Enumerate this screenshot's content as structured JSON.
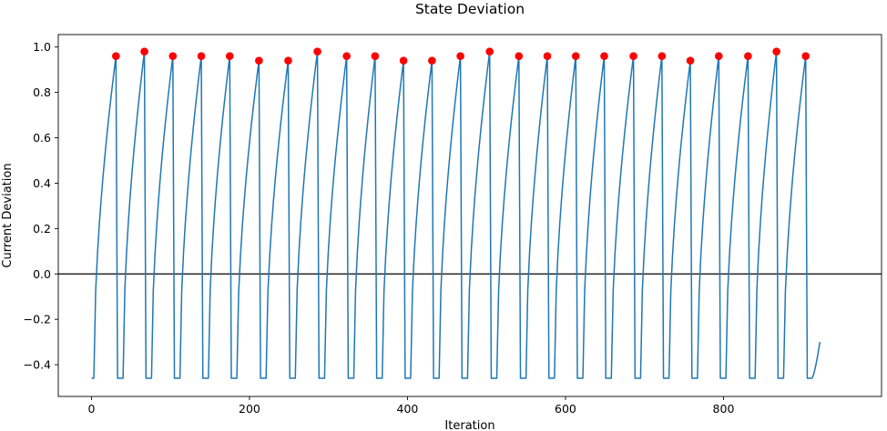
{
  "chart_data": {
    "type": "line",
    "title": "State Deviation",
    "xlabel": "Iteration",
    "ylabel": "Current Deviation",
    "xlim": [
      -42,
      1000
    ],
    "ylim": [
      -0.54,
      1.055
    ],
    "xticks": [
      0,
      200,
      400,
      600,
      800
    ],
    "yticks": [
      -0.4,
      -0.2,
      0.0,
      0.2,
      0.4,
      0.6,
      0.8,
      1.0
    ],
    "xtick_labels": [
      "0",
      "200",
      "400",
      "600",
      "800"
    ],
    "ytick_labels": [
      "−0.4",
      "−0.2",
      "0.0",
      "0.2",
      "0.4",
      "0.6",
      "0.8",
      "1.0"
    ],
    "reference_line_y": 0.0,
    "grid": false,
    "colors": {
      "line": "#1f77b4",
      "peaks": "#ff0000",
      "reference": "#000000"
    },
    "series": [
      {
        "type": "line",
        "baseline": -0.46,
        "start_x": 0,
        "end": {
          "x": 922,
          "y": -0.3
        },
        "cycles": [
          {
            "rise_start": 3,
            "peak_x": 31,
            "peak_y": 0.96,
            "drop_x": 33
          },
          {
            "rise_start": 40,
            "peak_x": 67,
            "peak_y": 0.98,
            "drop_x": 69
          },
          {
            "rise_start": 76,
            "peak_x": 103,
            "peak_y": 0.96,
            "drop_x": 105
          },
          {
            "rise_start": 112,
            "peak_x": 139,
            "peak_y": 0.96,
            "drop_x": 141
          },
          {
            "rise_start": 148,
            "peak_x": 175,
            "peak_y": 0.96,
            "drop_x": 177
          },
          {
            "rise_start": 184,
            "peak_x": 212,
            "peak_y": 0.94,
            "drop_x": 214
          },
          {
            "rise_start": 221,
            "peak_x": 249,
            "peak_y": 0.94,
            "drop_x": 251
          },
          {
            "rise_start": 258,
            "peak_x": 286,
            "peak_y": 0.98,
            "drop_x": 288
          },
          {
            "rise_start": 295,
            "peak_x": 323,
            "peak_y": 0.96,
            "drop_x": 325
          },
          {
            "rise_start": 332,
            "peak_x": 359,
            "peak_y": 0.96,
            "drop_x": 361
          },
          {
            "rise_start": 368,
            "peak_x": 395,
            "peak_y": 0.94,
            "drop_x": 397
          },
          {
            "rise_start": 404,
            "peak_x": 431,
            "peak_y": 0.94,
            "drop_x": 433
          },
          {
            "rise_start": 440,
            "peak_x": 467,
            "peak_y": 0.96,
            "drop_x": 469
          },
          {
            "rise_start": 476,
            "peak_x": 504,
            "peak_y": 0.98,
            "drop_x": 506
          },
          {
            "rise_start": 513,
            "peak_x": 541,
            "peak_y": 0.96,
            "drop_x": 543
          },
          {
            "rise_start": 550,
            "peak_x": 577,
            "peak_y": 0.96,
            "drop_x": 579
          },
          {
            "rise_start": 586,
            "peak_x": 613,
            "peak_y": 0.96,
            "drop_x": 615
          },
          {
            "rise_start": 622,
            "peak_x": 649,
            "peak_y": 0.96,
            "drop_x": 651
          },
          {
            "rise_start": 658,
            "peak_x": 686,
            "peak_y": 0.96,
            "drop_x": 688
          },
          {
            "rise_start": 695,
            "peak_x": 722,
            "peak_y": 0.96,
            "drop_x": 724
          },
          {
            "rise_start": 731,
            "peak_x": 758,
            "peak_y": 0.94,
            "drop_x": 760
          },
          {
            "rise_start": 767,
            "peak_x": 794,
            "peak_y": 0.96,
            "drop_x": 796
          },
          {
            "rise_start": 803,
            "peak_x": 831,
            "peak_y": 0.96,
            "drop_x": 833
          },
          {
            "rise_start": 840,
            "peak_x": 867,
            "peak_y": 0.98,
            "drop_x": 869
          },
          {
            "rise_start": 876,
            "peak_x": 904,
            "peak_y": 0.96,
            "drop_x": 906
          }
        ]
      }
    ]
  }
}
